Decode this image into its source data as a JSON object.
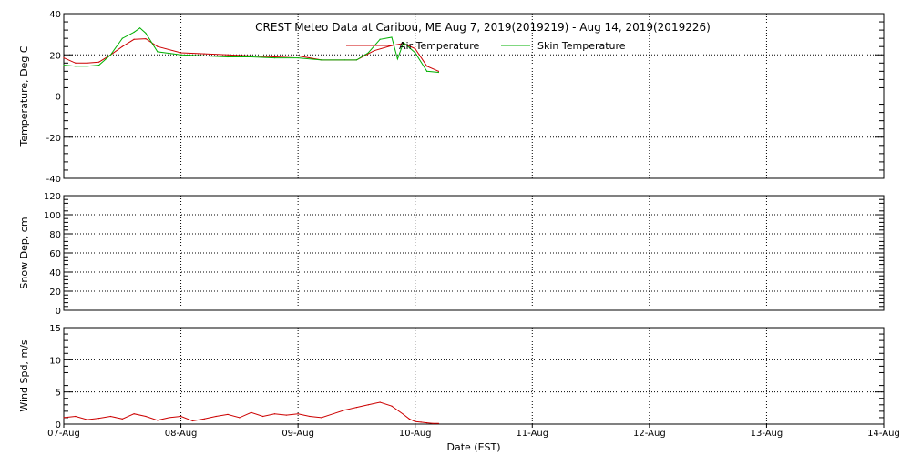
{
  "chart_data": {
    "title": "CREST Meteo Data at Caribou, ME   Aug  7, 2019(2019219) - Aug 14, 2019(2019226)",
    "xlabel": "Date (EST)",
    "x_tick_labels": [
      "07-Aug",
      "08-Aug",
      "09-Aug",
      "10-Aug",
      "11-Aug",
      "12-Aug",
      "13-Aug",
      "14-Aug"
    ],
    "xlim_days": [
      0,
      7
    ],
    "grid": true,
    "colors": {
      "air_temperature": "#cc0000",
      "skin_temperature": "#00b000",
      "wind_speed": "#cc0000"
    },
    "panels": [
      {
        "type": "line",
        "ylabel": "Temperature, Deg C",
        "ylim": [
          -40,
          40
        ],
        "y_ticks": [
          -40,
          -20,
          0,
          20,
          40
        ],
        "legend_position": "top-center",
        "series": [
          {
            "name": "Air Temperature",
            "color": "#cc0000",
            "x": [
              0,
              0.1,
              0.2,
              0.3,
              0.4,
              0.5,
              0.6,
              0.7,
              0.8,
              1.0,
              1.2,
              1.4,
              1.6,
              1.8,
              2.0,
              2.2,
              2.5,
              2.65,
              2.8,
              2.9,
              3.0,
              3.1,
              3.2
            ],
            "values": [
              18.5,
              16,
              16,
              16.5,
              20,
              24,
              27.5,
              27.8,
              24,
              21,
              20.5,
              20,
              19.5,
              19,
              19.5,
              17.5,
              17.5,
              22,
              24.5,
              25.5,
              23,
              14.5,
              12
            ]
          },
          {
            "name": "Skin Temperature",
            "color": "#00b000",
            "x": [
              0,
              0.1,
              0.2,
              0.3,
              0.4,
              0.5,
              0.6,
              0.65,
              0.7,
              0.8,
              1.0,
              1.2,
              1.4,
              1.6,
              1.8,
              2.0,
              2.2,
              2.4,
              2.5,
              2.6,
              2.7,
              2.8,
              2.85,
              2.9,
              3.0,
              3.1,
              3.2
            ],
            "values": [
              15,
              14.5,
              14.5,
              15,
              20,
              28,
              31,
              33,
              30.5,
              21.5,
              20,
              19.5,
              19,
              19,
              18.5,
              18.5,
              17.5,
              17.5,
              17.5,
              21,
              27.5,
              28.5,
              18,
              26,
              21,
              12,
              11.5
            ]
          }
        ]
      },
      {
        "type": "line",
        "ylabel": "Snow Dep, cm",
        "ylim": [
          0,
          120
        ],
        "y_ticks": [
          0,
          20,
          40,
          60,
          80,
          100,
          120
        ],
        "series": []
      },
      {
        "type": "line",
        "ylabel": "Wind Spd, m/s",
        "ylim": [
          0,
          15
        ],
        "y_ticks": [
          0,
          5,
          10,
          15
        ],
        "series": [
          {
            "name": "",
            "color": "#cc0000",
            "x": [
              0,
              0.1,
              0.2,
              0.3,
              0.4,
              0.5,
              0.6,
              0.7,
              0.8,
              0.9,
              1.0,
              1.1,
              1.2,
              1.3,
              1.4,
              1.5,
              1.6,
              1.7,
              1.8,
              1.9,
              2.0,
              2.1,
              2.2,
              2.3,
              2.4,
              2.5,
              2.6,
              2.7,
              2.8,
              2.9,
              2.95,
              3.0,
              3.05,
              3.1,
              3.15,
              3.2
            ],
            "values": [
              1.0,
              1.2,
              0.7,
              0.9,
              1.2,
              0.8,
              1.6,
              1.2,
              0.6,
              1.0,
              1.2,
              0.5,
              0.8,
              1.2,
              1.5,
              1.0,
              1.8,
              1.2,
              1.6,
              1.4,
              1.6,
              1.2,
              1.0,
              1.6,
              2.2,
              2.6,
              3.0,
              3.4,
              2.8,
              1.5,
              0.8,
              0.4,
              0.3,
              0.2,
              0.1,
              0.1
            ]
          }
        ]
      }
    ]
  }
}
